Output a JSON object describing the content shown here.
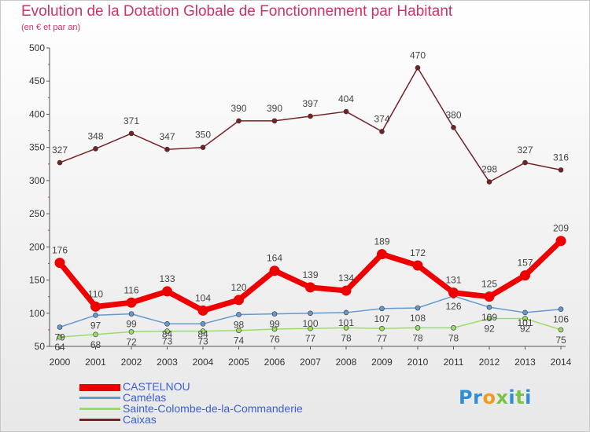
{
  "header": {
    "title": "Evolution de la Dotation Globale de Fonctionnement par Habitant",
    "subtitle": "(en € et par an)"
  },
  "logo": {
    "text": "Proxiti",
    "colors": [
      "#2f8fd6",
      "#f39a1b",
      "#7cc243"
    ]
  },
  "chart_data": {
    "type": "line",
    "title": "Evolution de la Dotation Globale de Fonctionnement par Habitant",
    "subtitle": "(en € et par an)",
    "xlabel": "",
    "ylabel": "",
    "x": [
      "2000",
      "2001",
      "2002",
      "2003",
      "2004",
      "2005",
      "2006",
      "2007",
      "2008",
      "2009",
      "2010",
      "2011",
      "2012",
      "2013",
      "2014"
    ],
    "ylim": [
      50,
      500
    ],
    "yticks": [
      50,
      100,
      150,
      200,
      250,
      300,
      350,
      400,
      450,
      500
    ],
    "grid": false,
    "legend_position": "bottom",
    "series": [
      {
        "name": "CASTELNOU",
        "color": "#ee0000",
        "values": [
          176,
          110,
          116,
          133,
          104,
          120,
          164,
          139,
          134,
          189,
          172,
          131,
          125,
          157,
          209
        ]
      },
      {
        "name": "Camélas",
        "color": "#6699cc",
        "values": [
          79,
          97,
          99,
          84,
          84,
          98,
          99,
          100,
          101,
          107,
          108,
          126,
          109,
          101,
          106
        ]
      },
      {
        "name": "Sainte-Colombe-de-la-Commanderie",
        "color": "#99dd66",
        "values": [
          64,
          68,
          72,
          73,
          73,
          74,
          76,
          77,
          78,
          77,
          78,
          78,
          92,
          92,
          75
        ]
      },
      {
        "name": "Caixas",
        "color": "#772222",
        "values": [
          327,
          348,
          371,
          347,
          350,
          390,
          390,
          397,
          404,
          374,
          470,
          380,
          298,
          327,
          316
        ]
      }
    ],
    "data_labels": [
      {
        "series": "CASTELNOU",
        "values": [
          176,
          110,
          116,
          133,
          104,
          120,
          164,
          139,
          134,
          189,
          172,
          131,
          125,
          157,
          209
        ]
      },
      {
        "series": "Camélas",
        "values": [
          79,
          97,
          99,
          84,
          84,
          98,
          99,
          100,
          101,
          107,
          108,
          126,
          109,
          101,
          106
        ]
      },
      {
        "series": "Sainte-Colombe-de-la-Commanderie",
        "values": [
          64,
          68,
          72,
          73,
          73,
          74,
          76,
          77,
          78,
          77,
          78,
          78,
          92,
          92,
          75
        ]
      },
      {
        "series": "Caixas",
        "values": [
          327,
          348,
          371,
          347,
          350,
          390,
          390,
          397,
          404,
          374,
          470,
          380,
          298,
          327,
          316
        ]
      }
    ]
  }
}
